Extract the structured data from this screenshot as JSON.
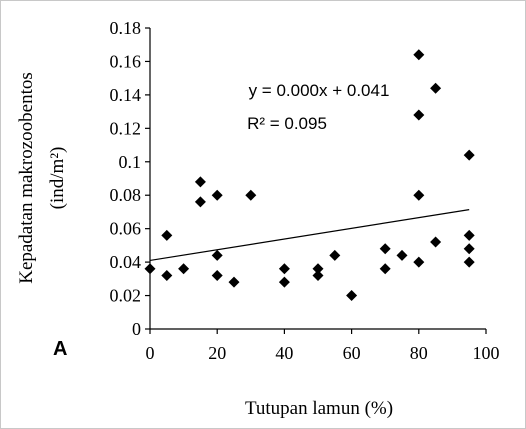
{
  "chart_data": {
    "type": "scatter",
    "panel_label": "A",
    "xlabel": "Tutupan lamun (%)",
    "ylabel": "Kepadatan makrozoobentos",
    "ylabel_unit": "(ind/m²)",
    "xlim": [
      0,
      100
    ],
    "ylim": [
      0,
      0.18
    ],
    "x_ticks": [
      0,
      20,
      40,
      60,
      80,
      100
    ],
    "x_tick_labels": [
      "0",
      "20",
      "40",
      "60",
      "80",
      "100"
    ],
    "y_ticks": [
      0,
      0.02,
      0.04,
      0.06,
      0.08,
      0.1,
      0.12,
      0.14,
      0.16,
      0.18
    ],
    "y_tick_labels": [
      "0",
      "0.02",
      "0.04",
      "0.06",
      "0.08",
      "0.1",
      "0.12",
      "0.14",
      "0.16",
      "0.18"
    ],
    "grid": false,
    "marker": "diamond",
    "marker_color": "#000000",
    "trendline": {
      "type": "linear",
      "equation": "y = 0.000x + 0.041",
      "r_squared": "R² = 0.095",
      "y_at_xmin": 0.041,
      "y_at_xmax": 0.073
    },
    "points": [
      {
        "x": 0,
        "y": 0.036
      },
      {
        "x": 5,
        "y": 0.056
      },
      {
        "x": 5,
        "y": 0.032
      },
      {
        "x": 10,
        "y": 0.036
      },
      {
        "x": 15,
        "y": 0.088
      },
      {
        "x": 15,
        "y": 0.076
      },
      {
        "x": 20,
        "y": 0.08
      },
      {
        "x": 20,
        "y": 0.044
      },
      {
        "x": 20,
        "y": 0.032
      },
      {
        "x": 25,
        "y": 0.028
      },
      {
        "x": 30,
        "y": 0.08
      },
      {
        "x": 40,
        "y": 0.036
      },
      {
        "x": 40,
        "y": 0.028
      },
      {
        "x": 50,
        "y": 0.036
      },
      {
        "x": 50,
        "y": 0.032
      },
      {
        "x": 55,
        "y": 0.044
      },
      {
        "x": 60,
        "y": 0.02
      },
      {
        "x": 70,
        "y": 0.048
      },
      {
        "x": 70,
        "y": 0.036
      },
      {
        "x": 75,
        "y": 0.044
      },
      {
        "x": 80,
        "y": 0.164
      },
      {
        "x": 80,
        "y": 0.128
      },
      {
        "x": 80,
        "y": 0.08
      },
      {
        "x": 80,
        "y": 0.04
      },
      {
        "x": 85,
        "y": 0.144
      },
      {
        "x": 85,
        "y": 0.052
      },
      {
        "x": 95,
        "y": 0.104
      },
      {
        "x": 95,
        "y": 0.056
      },
      {
        "x": 95,
        "y": 0.048
      },
      {
        "x": 95,
        "y": 0.04
      }
    ]
  }
}
